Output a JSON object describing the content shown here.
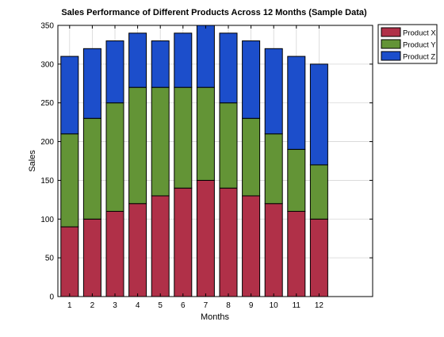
{
  "chart_data": {
    "type": "bar",
    "stacked": true,
    "title": "Sales Performance of Different Products Across 12 Months (Sample Data)",
    "xlabel": "Months",
    "ylabel": "Sales",
    "categories": [
      "1",
      "2",
      "3",
      "4",
      "5",
      "6",
      "7",
      "8",
      "9",
      "10",
      "11",
      "12"
    ],
    "ylim": [
      0,
      350
    ],
    "yticks": [
      0,
      50,
      100,
      150,
      200,
      250,
      300,
      350
    ],
    "grid": true,
    "legend_position": "outside top-right",
    "series": [
      {
        "name": "Product X",
        "color": "#b03048",
        "values": [
          90,
          100,
          110,
          120,
          130,
          140,
          150,
          140,
          130,
          120,
          110,
          100
        ]
      },
      {
        "name": "Product Y",
        "color": "#639436",
        "values": [
          120,
          130,
          140,
          150,
          140,
          130,
          120,
          110,
          100,
          90,
          80,
          70
        ]
      },
      {
        "name": "Product Z",
        "color": "#1c4ecb",
        "values": [
          100,
          90,
          80,
          70,
          60,
          70,
          80,
          90,
          100,
          110,
          120,
          130
        ]
      }
    ]
  }
}
